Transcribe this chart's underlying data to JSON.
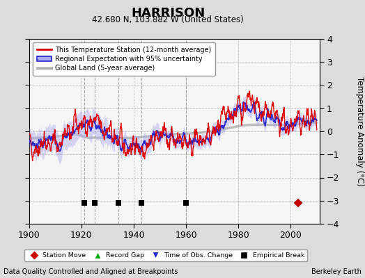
{
  "title": "HARRISON",
  "subtitle": "42.680 N, 103.882 W (United States)",
  "xlabel_bottom": "Data Quality Controlled and Aligned at Breakpoints",
  "xlabel_right": "Berkeley Earth",
  "ylabel": "Temperature Anomaly (°C)",
  "xlim": [
    1900,
    2011
  ],
  "ylim": [
    -4,
    4
  ],
  "yticks": [
    -4,
    -3,
    -2,
    -1,
    0,
    1,
    2,
    3,
    4
  ],
  "xticks": [
    1900,
    1920,
    1940,
    1960,
    1980,
    2000
  ],
  "bg_color": "#dcdcdc",
  "plot_bg_color": "#f5f5f5",
  "red_line_color": "#dd0000",
  "blue_line_color": "#2222cc",
  "blue_band_color": "#aaaaee",
  "gray_line_color": "#aaaaaa",
  "grid_color": "#bbbbbb",
  "empirical_breaks": [
    1921,
    1925,
    1934,
    1943,
    1960
  ],
  "station_moves": [
    2003
  ],
  "record_gaps": [],
  "tobs_changes": [],
  "vlines": [
    1921,
    1925,
    1934,
    1943,
    1960
  ],
  "legend_labels": [
    "This Temperature Station (12-month average)",
    "Regional Expectation with 95% uncertainty",
    "Global Land (5-year average)"
  ],
  "legend_colors": [
    "#dd0000",
    "#2222cc",
    "#aaaaaa"
  ],
  "marker_y": -3.1,
  "seed": 42
}
